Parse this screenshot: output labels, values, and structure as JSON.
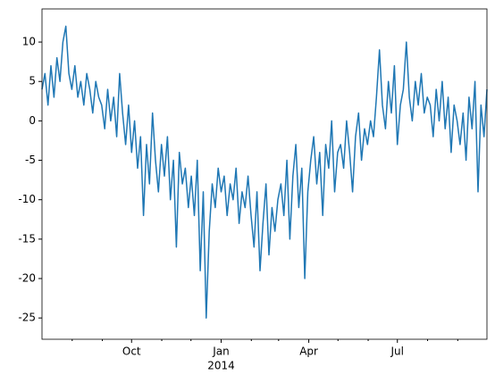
{
  "chart_data": {
    "type": "line",
    "series": [
      {
        "color": "#1f77b4",
        "values": [
          4,
          6,
          2,
          7,
          3,
          8,
          5,
          10,
          12,
          6,
          4,
          7,
          3,
          5,
          2,
          6,
          4,
          1,
          5,
          3,
          2,
          -1,
          4,
          0,
          3,
          -2,
          6,
          1,
          -3,
          2,
          -4,
          0,
          -6,
          -2,
          -12,
          -3,
          -8,
          1,
          -5,
          -9,
          -3,
          -7,
          -2,
          -10,
          -5,
          -16,
          -4,
          -8,
          -6,
          -11,
          -7,
          -12,
          -5,
          -19,
          -9,
          -25,
          -14,
          -8,
          -11,
          -6,
          -9,
          -7,
          -12,
          -8,
          -10,
          -6,
          -13,
          -9,
          -11,
          -7,
          -12,
          -16,
          -9,
          -19,
          -13,
          -8,
          -17,
          -11,
          -14,
          -10,
          -8,
          -12,
          -5,
          -15,
          -7,
          -3,
          -11,
          -6,
          -20,
          -9,
          -5,
          -2,
          -8,
          -4,
          -12,
          -3,
          -6,
          0,
          -9,
          -4,
          -3,
          -6,
          0,
          -4,
          -9,
          -2,
          1,
          -5,
          -1,
          -3,
          0,
          -2,
          3,
          9,
          2,
          -1,
          5,
          1,
          7,
          -3,
          2,
          4,
          10,
          3,
          0,
          5,
          2,
          6,
          1,
          3,
          2,
          -2,
          4,
          0,
          5,
          -1,
          3,
          -4,
          2,
          0,
          -3,
          1,
          -5,
          3,
          -1,
          5,
          -9,
          2,
          -2,
          4
        ]
      }
    ],
    "xlim": [
      "2013-07",
      "2014-10"
    ],
    "xticks": [
      {
        "value": "2013-10",
        "label": "Oct"
      },
      {
        "value": "2014-01",
        "label": "Jan"
      },
      {
        "value": "2014-04",
        "label": "Apr"
      },
      {
        "value": "2014-07",
        "label": "Jul"
      }
    ],
    "x_year_label": {
      "value": "2014-01",
      "label": "2014"
    },
    "minor_xticks": [
      "2013-08",
      "2013-09",
      "2013-11",
      "2013-12",
      "2014-02",
      "2014-03",
      "2014-05",
      "2014-06",
      "2014-08",
      "2014-09"
    ],
    "ylim": [
      -27.7,
      14.2
    ],
    "yticks": [
      -25,
      -20,
      -15,
      -10,
      -5,
      0,
      5,
      10
    ]
  }
}
